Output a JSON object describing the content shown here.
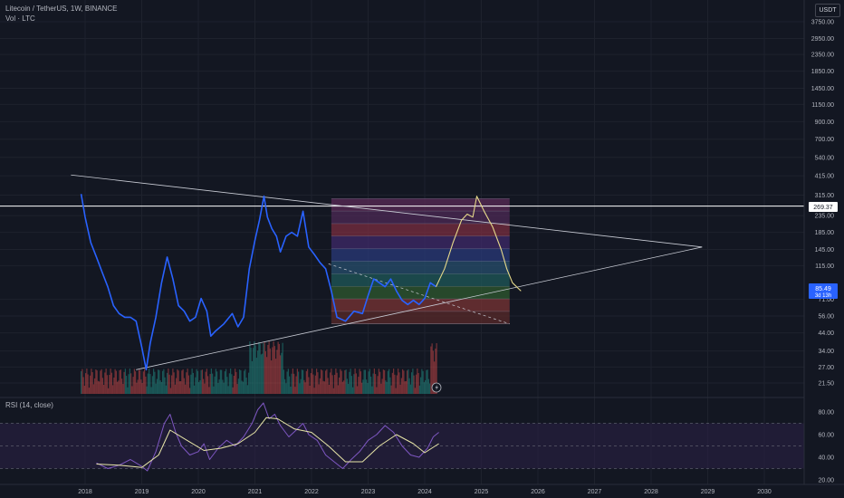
{
  "header": {
    "title": "Litecoin / TetherUS, 1W, BINANCE",
    "volume_label": "Vol · LTC"
  },
  "rsi_panel": {
    "title": "RSI (14, close)"
  },
  "price_axis": {
    "currency": "USDT"
  },
  "price_tags": {
    "horizontal_line": "269.37",
    "current_price": "85.49",
    "countdown": "3d 13h"
  },
  "colors": {
    "background": "#131722",
    "price_line": "#2962ff",
    "projection": "#e6d98a",
    "trendlines": "#c8cbd4",
    "volume_up": "#26a69a",
    "volume_down": "#ef5350",
    "rsi_line": "#7e57c2",
    "rsi_ma": "#e8e6a8",
    "rsi_band": "#2a2045"
  },
  "chart_data": [
    {
      "type": "line",
      "scale": "log",
      "y_ticks": [
        3750,
        2950,
        2350,
        1850,
        1450,
        1150,
        900,
        700,
        540,
        415,
        315,
        235,
        185,
        145,
        115,
        71,
        56,
        44,
        34,
        27,
        21.5
      ],
      "y_tick_labels": [
        "3750.00",
        "2950.00",
        "2350.00",
        "1850.00",
        "1450.00",
        "1150.00",
        "900.00",
        "700.00",
        "540.00",
        "415.00",
        "315.00",
        "235.00",
        "185.00",
        "145.00",
        "115.00",
        "71.00",
        "56.00",
        "44.00",
        "34.00",
        "27.00",
        "21.50"
      ],
      "x_ticks": [
        "2018",
        "2019",
        "2020",
        "2021",
        "2022",
        "2023",
        "2024",
        "2025",
        "2026",
        "2027",
        "2028",
        "2029",
        "2030"
      ],
      "series": [
        {
          "x": [
            2017.93,
            2018.0,
            2018.1,
            2018.2,
            2018.3,
            2018.4,
            2018.5,
            2018.6,
            2018.7,
            2018.8,
            2018.9,
            2019.0,
            2019.08,
            2019.15,
            2019.25,
            2019.35,
            2019.45,
            2019.55,
            2019.65,
            2019.75,
            2019.85,
            2019.95,
            2020.05,
            2020.15,
            2020.22,
            2020.3,
            2020.45,
            2020.6,
            2020.7,
            2020.8,
            2020.9,
            2021.0,
            2021.08,
            2021.16,
            2021.22,
            2021.3,
            2021.38,
            2021.45,
            2021.55,
            2021.65,
            2021.75,
            2021.85,
            2021.95,
            2022.05,
            2022.15,
            2022.25,
            2022.35,
            2022.45,
            2022.6,
            2022.75,
            2022.9,
            2023.0,
            2023.1,
            2023.2,
            2023.3,
            2023.4,
            2023.5,
            2023.6,
            2023.7,
            2023.8,
            2023.9,
            2024.0,
            2024.1,
            2024.2
          ],
          "values": [
            320,
            230,
            160,
            130,
            105,
            85,
            65,
            58,
            55,
            55,
            52,
            36,
            26,
            38,
            55,
            90,
            130,
            95,
            65,
            60,
            52,
            55,
            72,
            60,
            42,
            45,
            50,
            58,
            48,
            55,
            110,
            165,
            220,
            310,
            230,
            195,
            175,
            140,
            175,
            185,
            175,
            250,
            150,
            135,
            120,
            110,
            80,
            55,
            52,
            60,
            58,
            75,
            95,
            90,
            85,
            95,
            80,
            70,
            66,
            70,
            66,
            72,
            90,
            85
          ]
        },
        {
          "name": "projection",
          "x": [
            2024.2,
            2024.35,
            2024.5,
            2024.65,
            2024.75,
            2024.85,
            2024.92,
            2025.05,
            2025.2,
            2025.35,
            2025.45,
            2025.55,
            2025.7
          ],
          "values": [
            85,
            110,
            160,
            220,
            240,
            230,
            310,
            250,
            200,
            145,
            110,
            90,
            80
          ]
        }
      ],
      "horizontal_line": 269.37,
      "fib_box": {
        "x_start": 2022.35,
        "x_end": 2025.5,
        "top": 300,
        "bottom": 50
      },
      "trendline_upper": [
        [
          2017.75,
          420
        ],
        [
          2028.9,
          150
        ]
      ],
      "trendline_lower": [
        [
          2018.9,
          26
        ],
        [
          2028.9,
          150
        ]
      ],
      "dashed_line": [
        [
          2022.3,
          118
        ],
        [
          2025.5,
          50
        ]
      ]
    },
    {
      "type": "line",
      "title": "RSI (14, close)",
      "y_ticks": [
        80,
        60,
        40,
        20
      ],
      "y_tick_labels": [
        "80.00",
        "60.00",
        "40.00",
        "20.00"
      ],
      "band": [
        30,
        70
      ],
      "series": [
        {
          "x": [
            2018.2,
            2018.4,
            2018.6,
            2018.8,
            2019.0,
            2019.1,
            2019.25,
            2019.4,
            2019.5,
            2019.6,
            2019.7,
            2019.85,
            2020.0,
            2020.1,
            2020.2,
            2020.35,
            2020.5,
            2020.65,
            2020.8,
            2020.95,
            2021.05,
            2021.15,
            2021.25,
            2021.35,
            2021.45,
            2021.6,
            2021.75,
            2021.85,
            2021.95,
            2022.1,
            2022.25,
            2022.4,
            2022.55,
            2022.7,
            2022.85,
            2023.0,
            2023.15,
            2023.3,
            2023.45,
            2023.6,
            2023.75,
            2023.9,
            2024.05,
            2024.15,
            2024.25
          ],
          "values": [
            35,
            30,
            33,
            38,
            32,
            28,
            45,
            70,
            78,
            62,
            50,
            42,
            45,
            52,
            38,
            48,
            55,
            50,
            58,
            70,
            82,
            88,
            74,
            78,
            68,
            58,
            65,
            70,
            60,
            55,
            42,
            36,
            30,
            38,
            45,
            55,
            60,
            68,
            62,
            50,
            42,
            40,
            48,
            58,
            62
          ]
        },
        {
          "x": [
            2018.2,
            2018.6,
            2019.0,
            2019.3,
            2019.5,
            2019.8,
            2020.1,
            2020.4,
            2020.7,
            2021.0,
            2021.2,
            2021.4,
            2021.7,
            2022.0,
            2022.3,
            2022.6,
            2022.9,
            2023.2,
            2023.5,
            2023.8,
            2024.0,
            2024.25
          ],
          "values": [
            34,
            33,
            31,
            42,
            64,
            55,
            46,
            48,
            52,
            62,
            75,
            74,
            65,
            62,
            50,
            36,
            36,
            50,
            60,
            52,
            44,
            52
          ]
        }
      ]
    }
  ]
}
